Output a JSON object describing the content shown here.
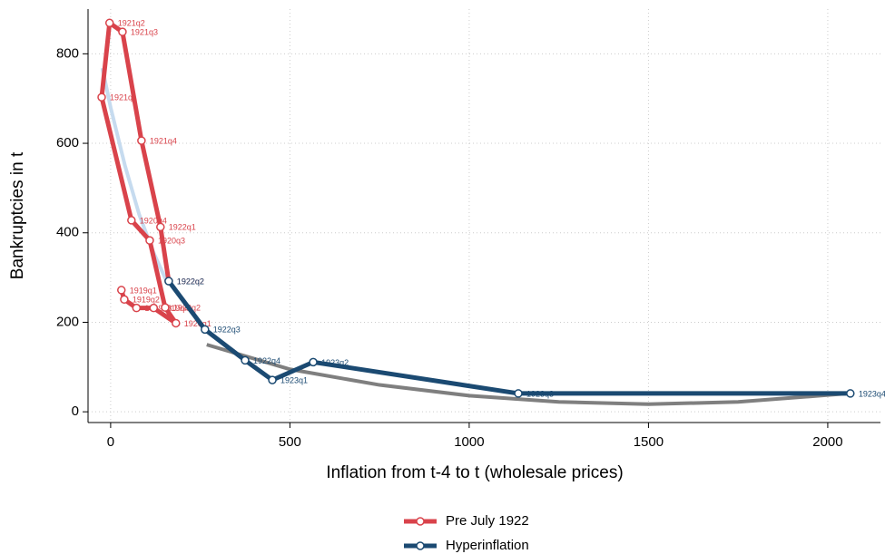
{
  "chart_data": {
    "type": "line",
    "xlabel": "Inflation from t-4 to t (wholesale prices)",
    "ylabel": "Bankruptcies in t",
    "xlim": [
      -63,
      2147
    ],
    "ylim": [
      -24,
      900
    ],
    "xticks": [
      0,
      500,
      1000,
      1500,
      2000
    ],
    "yticks": [
      0,
      200,
      400,
      600,
      800
    ],
    "grid": true,
    "legend": "bottom",
    "series": [
      {
        "name": "Pre July 1922",
        "color": "#d9434b",
        "x": [
          30,
          38,
          72,
          120,
          182,
          152,
          109,
          58,
          -25,
          -3,
          33,
          86,
          139,
          162
        ],
        "values": [
          272,
          251,
          232,
          232,
          198,
          233,
          383,
          428,
          703,
          869,
          849,
          606,
          413,
          292
        ],
        "labels": [
          "1919q1",
          "1919q2",
          "1919q3",
          "1919q4",
          "1920q1",
          "1920q2",
          "1920q3",
          "1920q4",
          "1921q1",
          "1921q2",
          "1921q3",
          "1921q4",
          "1922q1",
          "1922q2"
        ]
      },
      {
        "name": "Hyperinflation",
        "color": "#1b4a72",
        "x": [
          162,
          263,
          375,
          451,
          565,
          1137,
          2063
        ],
        "values": [
          292,
          184,
          115,
          71,
          111,
          41,
          41
        ],
        "labels": [
          "1922q2",
          "1922q3",
          "1922q4",
          "1923q1",
          "1923q2",
          "1923q3",
          "1923q4"
        ]
      }
    ],
    "fits": [
      {
        "color": "#c6dbef",
        "x": [
          -23,
          0,
          40,
          80,
          120,
          160
        ],
        "values": [
          768,
          680,
          550,
          440,
          355,
          285
        ]
      },
      {
        "color": "#7f7f7f",
        "x": [
          268,
          500,
          750,
          1000,
          1250,
          1500,
          1750,
          2058
        ],
        "values": [
          150,
          95,
          60,
          36,
          22,
          17,
          22,
          41
        ]
      }
    ]
  }
}
